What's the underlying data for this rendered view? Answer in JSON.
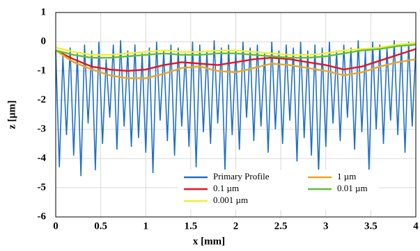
{
  "chart_data": {
    "type": "line",
    "xlabel": "x [mm]",
    "ylabel": "z [µm]",
    "xlim": [
      0,
      4
    ],
    "ylim": [
      -6,
      1
    ],
    "xticks": [
      0,
      0.5,
      1,
      1.5,
      2,
      2.5,
      3,
      3.5,
      4
    ],
    "yticks": [
      1,
      0,
      -1,
      -2,
      -3,
      -4,
      -5,
      -6
    ],
    "grid": true,
    "legend": "lower right",
    "series": [
      {
        "name": "Primary Profile",
        "color": "#1f6fc5",
        "x": [
          0,
          0.04,
          0.08,
          0.12,
          0.16,
          0.2,
          0.24,
          0.28,
          0.32,
          0.36,
          0.4,
          0.44,
          0.48,
          0.52,
          0.56,
          0.6,
          0.64,
          0.68,
          0.72,
          0.76,
          0.8,
          0.84,
          0.88,
          0.92,
          0.96,
          1,
          1.04,
          1.08,
          1.12,
          1.16,
          1.2,
          1.24,
          1.28,
          1.32,
          1.36,
          1.4,
          1.44,
          1.48,
          1.52,
          1.56,
          1.6,
          1.64,
          1.68,
          1.72,
          1.76,
          1.8,
          1.84,
          1.88,
          1.92,
          1.96,
          2,
          2.04,
          2.08,
          2.12,
          2.16,
          2.2,
          2.24,
          2.28,
          2.32,
          2.36,
          2.4,
          2.44,
          2.48,
          2.52,
          2.56,
          2.6,
          2.64,
          2.68,
          2.72,
          2.76,
          2.8,
          2.84,
          2.88,
          2.92,
          2.96,
          3,
          3.04,
          3.08,
          3.12,
          3.16,
          3.2,
          3.24,
          3.28,
          3.32,
          3.36,
          3.4,
          3.44,
          3.48,
          3.52,
          3.56,
          3.6,
          3.64,
          3.68,
          3.72,
          3.76,
          3.8,
          3.84,
          3.88,
          3.92,
          3.96,
          4
        ],
        "values": [
          -0.3,
          -4.3,
          -0.5,
          -3.2,
          -0.2,
          -3.9,
          -0.4,
          -4.6,
          -0.1,
          -2.8,
          -0.3,
          -4.4,
          0,
          -3.5,
          -0.6,
          -2.6,
          -0.1,
          -3.7,
          0.05,
          -2.9,
          -0.3,
          -3.6,
          -0.1,
          -3.3,
          -0.4,
          -3.8,
          -0.2,
          -4.5,
          0,
          -2.7,
          -0.3,
          -3.4,
          -0.1,
          -3.9,
          -0.2,
          -2.9,
          -0.4,
          -3.6,
          0,
          -4.3,
          -0.1,
          -3.1,
          -0.3,
          -3.5,
          0.05,
          -2.8,
          -0.2,
          -4.4,
          -0.1,
          -3.2,
          -0.3,
          -3.7,
          0,
          -2.6,
          -0.2,
          -3.4,
          -0.1,
          -2.9,
          -0.4,
          -3.8,
          0,
          -3,
          -0.3,
          -3.5,
          -0.1,
          -2.7,
          -0.2,
          -4.1,
          0,
          -3.3,
          -0.3,
          -3.9,
          -0.1,
          -4.5,
          -0.2,
          -3.6,
          0,
          -2.8,
          -0.3,
          -3.4,
          -0.1,
          -2.6,
          -0.2,
          -3.7,
          0.05,
          -3.1,
          -0.3,
          -4.4,
          0,
          -3,
          -0.1,
          -3.5,
          -0.2,
          -2.7,
          0.05,
          -3.2,
          -0.1,
          -3.8,
          0,
          -2.9,
          -0.2
        ]
      },
      {
        "name": "0.1 µm",
        "color": "#e8141b",
        "x": [
          0,
          0.2,
          0.4,
          0.6,
          0.8,
          1,
          1.2,
          1.4,
          1.6,
          1.8,
          2,
          2.2,
          2.4,
          2.6,
          2.8,
          3,
          3.2,
          3.4,
          3.6,
          3.8,
          4
        ],
        "values": [
          -0.3,
          -0.6,
          -0.85,
          -0.95,
          -1,
          -0.95,
          -0.8,
          -0.7,
          -0.75,
          -0.8,
          -0.7,
          -0.6,
          -0.55,
          -0.6,
          -0.7,
          -0.8,
          -0.95,
          -0.85,
          -0.65,
          -0.45,
          -0.25
        ]
      },
      {
        "name": "0.001 µm",
        "color": "#f2ef2a",
        "x": [
          0,
          0.2,
          0.4,
          0.6,
          0.8,
          1,
          1.2,
          1.4,
          1.6,
          1.8,
          2,
          2.2,
          2.4,
          2.6,
          2.8,
          3,
          3.2,
          3.4,
          3.6,
          3.8,
          4
        ],
        "values": [
          -0.2,
          -0.35,
          -0.45,
          -0.45,
          -0.4,
          -0.35,
          -0.3,
          -0.35,
          -0.35,
          -0.3,
          -0.3,
          -0.35,
          -0.4,
          -0.45,
          -0.45,
          -0.4,
          -0.3,
          -0.25,
          -0.2,
          -0.1,
          -0.05
        ]
      },
      {
        "name": "1 µm",
        "color": "#f0a41e",
        "x": [
          0,
          0.2,
          0.4,
          0.6,
          0.8,
          1,
          1.2,
          1.4,
          1.6,
          1.8,
          2,
          2.2,
          2.4,
          2.6,
          2.8,
          3,
          3.2,
          3.4,
          3.6,
          3.8,
          4
        ],
        "values": [
          -0.3,
          -0.7,
          -0.95,
          -1.15,
          -1.25,
          -1.25,
          -1.1,
          -0.9,
          -0.85,
          -1,
          -1.05,
          -0.9,
          -0.75,
          -0.8,
          -0.9,
          -1,
          -1.15,
          -1.05,
          -0.85,
          -0.7,
          -0.6
        ]
      },
      {
        "name": "0.01 µm",
        "color": "#5cbf3a",
        "x": [
          0,
          0.2,
          0.4,
          0.6,
          0.8,
          1,
          1.2,
          1.4,
          1.6,
          1.8,
          2,
          2.2,
          2.4,
          2.6,
          2.8,
          3,
          3.2,
          3.4,
          3.6,
          3.8,
          4
        ],
        "values": [
          -0.3,
          -0.45,
          -0.55,
          -0.55,
          -0.5,
          -0.45,
          -0.4,
          -0.45,
          -0.45,
          -0.4,
          -0.4,
          -0.45,
          -0.5,
          -0.55,
          -0.55,
          -0.5,
          -0.4,
          -0.3,
          -0.25,
          -0.15,
          -0.1
        ]
      }
    ]
  }
}
